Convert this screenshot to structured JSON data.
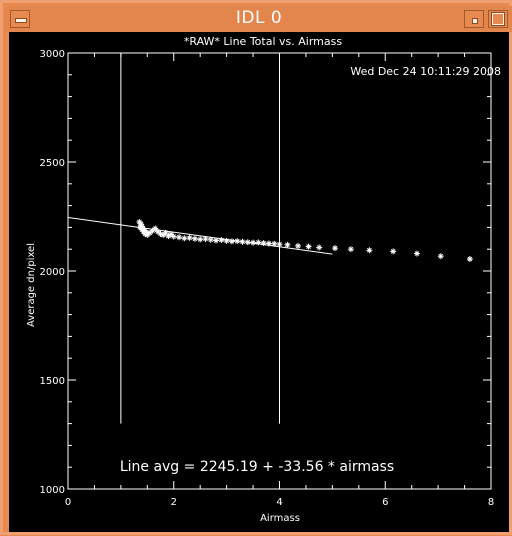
{
  "window": {
    "title": "IDL 0"
  },
  "chart_data": {
    "type": "scatter",
    "title": "*RAW* Line Total vs. Airmass",
    "timestamp": "Wed Dec 24 10:11:29 2008",
    "xlabel": "Airmass",
    "ylabel": "Average dn/pixel",
    "xlim": [
      0,
      8
    ],
    "ylim": [
      1000,
      3000
    ],
    "x_ticks": [
      0,
      2,
      4,
      6,
      8
    ],
    "y_ticks": [
      1000,
      1500,
      2000,
      2500,
      3000
    ],
    "annotation": "Line avg = 2245.19 + -33.56 * airmass",
    "fit": {
      "intercept": 2245.19,
      "slope": -33.56,
      "x_range": [
        0,
        5
      ]
    },
    "vertical_lines": [
      1,
      4
    ],
    "points": [
      [
        1.35,
        2225
      ],
      [
        1.38,
        2215
      ],
      [
        1.4,
        2205
      ],
      [
        1.42,
        2195
      ],
      [
        1.45,
        2185
      ],
      [
        1.48,
        2178
      ],
      [
        1.5,
        2172
      ],
      [
        1.36,
        2200
      ],
      [
        1.4,
        2190
      ],
      [
        1.43,
        2180
      ],
      [
        1.46,
        2170
      ],
      [
        1.5,
        2165
      ],
      [
        1.55,
        2175
      ],
      [
        1.6,
        2185
      ],
      [
        1.65,
        2195
      ],
      [
        1.7,
        2180
      ],
      [
        1.75,
        2170
      ],
      [
        1.8,
        2165
      ],
      [
        1.85,
        2175
      ],
      [
        1.9,
        2160
      ],
      [
        1.95,
        2168
      ],
      [
        2.0,
        2158
      ],
      [
        2.1,
        2155
      ],
      [
        2.2,
        2150
      ],
      [
        2.3,
        2152
      ],
      [
        2.4,
        2148
      ],
      [
        2.5,
        2145
      ],
      [
        2.6,
        2147
      ],
      [
        2.7,
        2143
      ],
      [
        2.8,
        2140
      ],
      [
        2.9,
        2142
      ],
      [
        3.0,
        2138
      ],
      [
        3.1,
        2136
      ],
      [
        3.2,
        2137
      ],
      [
        3.3,
        2134
      ],
      [
        3.4,
        2132
      ],
      [
        3.5,
        2130
      ],
      [
        3.6,
        2131
      ],
      [
        3.7,
        2128
      ],
      [
        3.8,
        2126
      ],
      [
        3.9,
        2125
      ],
      [
        4.0,
        2123
      ],
      [
        4.15,
        2120
      ],
      [
        4.35,
        2115
      ],
      [
        4.55,
        2112
      ],
      [
        4.75,
        2108
      ],
      [
        5.05,
        2105
      ],
      [
        5.35,
        2100
      ],
      [
        5.7,
        2095
      ],
      [
        6.15,
        2090
      ],
      [
        6.6,
        2080
      ],
      [
        7.05,
        2068
      ],
      [
        7.6,
        2055
      ]
    ]
  }
}
